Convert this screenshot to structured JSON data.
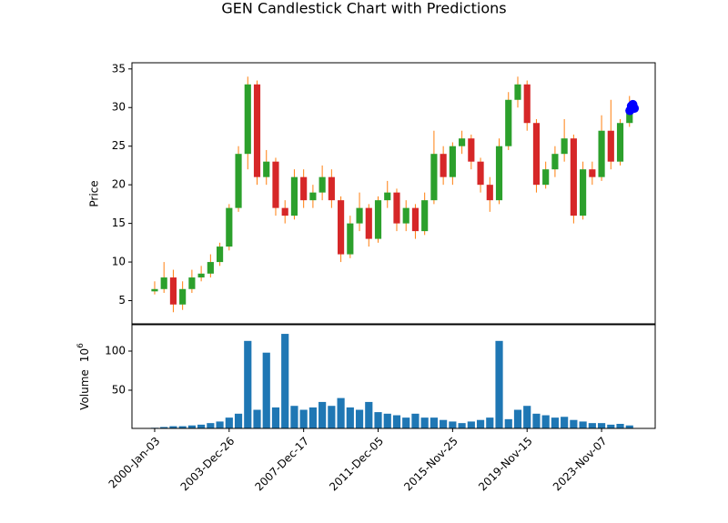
{
  "chart_data": {
    "type": "candlestick",
    "title": "GEN Candlestick Chart with Predictions",
    "x": [
      0,
      125,
      250,
      375,
      500,
      625,
      750,
      875,
      1000,
      1125,
      1250,
      1375,
      1500,
      1625,
      1750,
      1875,
      2000,
      2125,
      2250,
      2375,
      2500,
      2625,
      2750,
      2875,
      3000,
      3125,
      3250,
      3375,
      3500,
      3625,
      3750,
      3875,
      4000,
      4125,
      4250,
      4375,
      4500,
      4625,
      4750,
      4875,
      5000,
      5125,
      5250,
      5375,
      5500,
      5625,
      5750,
      5875,
      6000,
      6125,
      6250,
      6375
    ],
    "open": [
      6.2,
      6.5,
      8,
      4.5,
      6.5,
      8,
      8.5,
      10,
      12,
      17,
      24,
      33,
      21,
      23,
      17,
      16,
      21,
      18,
      19,
      21,
      18,
      11,
      15,
      17,
      13,
      18,
      19,
      15,
      17,
      14,
      18,
      24,
      21,
      25,
      26,
      23,
      20,
      18,
      25,
      31,
      33,
      28,
      20,
      22,
      24,
      26,
      16,
      22,
      21,
      27,
      23,
      28
    ],
    "high": [
      7.5,
      10,
      9,
      7.5,
      9,
      9.5,
      11,
      12.5,
      17.5,
      25,
      34,
      33.5,
      24.5,
      23.5,
      18,
      22,
      22,
      20,
      22.5,
      22,
      18.5,
      16,
      19,
      17.5,
      18.5,
      20.5,
      19.5,
      18,
      17.5,
      19,
      27,
      25,
      25.5,
      27,
      26.5,
      23.5,
      21,
      26,
      32,
      34,
      33.5,
      28.5,
      23,
      25,
      28.5,
      26.5,
      23,
      23,
      29,
      31,
      28.5,
      31.5
    ],
    "low": [
      5.8,
      6,
      3.5,
      3.8,
      6,
      7.5,
      8,
      9.5,
      11.5,
      16.5,
      22,
      20,
      20,
      16,
      15,
      15.5,
      17,
      17,
      18,
      17,
      10,
      10.5,
      14,
      12,
      12.5,
      17,
      14,
      14,
      13,
      13.5,
      17.5,
      20,
      20,
      24,
      22,
      19,
      16.5,
      17.5,
      24.5,
      30,
      27,
      19,
      19.5,
      21,
      23,
      15,
      15.5,
      20,
      20.5,
      22,
      22.5,
      27.5
    ],
    "close": [
      6.5,
      8,
      4.5,
      6.5,
      8,
      8.5,
      10,
      12,
      17,
      24,
      33,
      21,
      23,
      17,
      16,
      21,
      18,
      19,
      21,
      18,
      11,
      15,
      17,
      13,
      18,
      19,
      15,
      17,
      14,
      18,
      24,
      21,
      25,
      26,
      23,
      20,
      18,
      25,
      31,
      33,
      28,
      20,
      22,
      24,
      26,
      16,
      22,
      21,
      27,
      23,
      28,
      29.5
    ],
    "volume": [
      2,
      3,
      4,
      4,
      5,
      6,
      8,
      10,
      15,
      20,
      113,
      25,
      98,
      28,
      122,
      30,
      25,
      28,
      35,
      30,
      40,
      28,
      25,
      35,
      22,
      20,
      18,
      15,
      20,
      15,
      15,
      12,
      10,
      8,
      10,
      12,
      15,
      113,
      13,
      25,
      30,
      20,
      18,
      15,
      16,
      12,
      10,
      8,
      8,
      6,
      7,
      5
    ],
    "up_color": "#2ca02c",
    "down_color": "#d62728",
    "wick_color": "#ff7f0e",
    "volume_color": "#1f77b4",
    "xlim": [
      -305,
      6720
    ],
    "xticks": [
      {
        "value": 0,
        "label": "2000-Jan-03"
      },
      {
        "value": 1000,
        "label": "2003-Dec-26"
      },
      {
        "value": 2000,
        "label": "2007-Dec-17"
      },
      {
        "value": 3000,
        "label": "2011-Dec-05"
      },
      {
        "value": 4000,
        "label": "2015-Nov-25"
      },
      {
        "value": 5000,
        "label": "2019-Nov-15"
      },
      {
        "value": 6000,
        "label": "2023-Nov-07"
      }
    ],
    "ylim": [
      2.0,
      35.8
    ],
    "yticks": [
      5,
      10,
      15,
      20,
      25,
      30,
      35
    ],
    "ylabel": "Price",
    "volume_ylim": [
      1.2,
      133.7
    ],
    "volume_yticks": [
      50,
      100
    ],
    "volume_ylabel": "Volume",
    "volume_scale_base": "10",
    "volume_scale_exponent": "6",
    "predictions": {
      "x": [
        6380,
        6400,
        6420,
        6440
      ],
      "values": [
        29.6,
        30.2,
        30.4,
        29.9
      ],
      "color": "#0000ff"
    }
  }
}
